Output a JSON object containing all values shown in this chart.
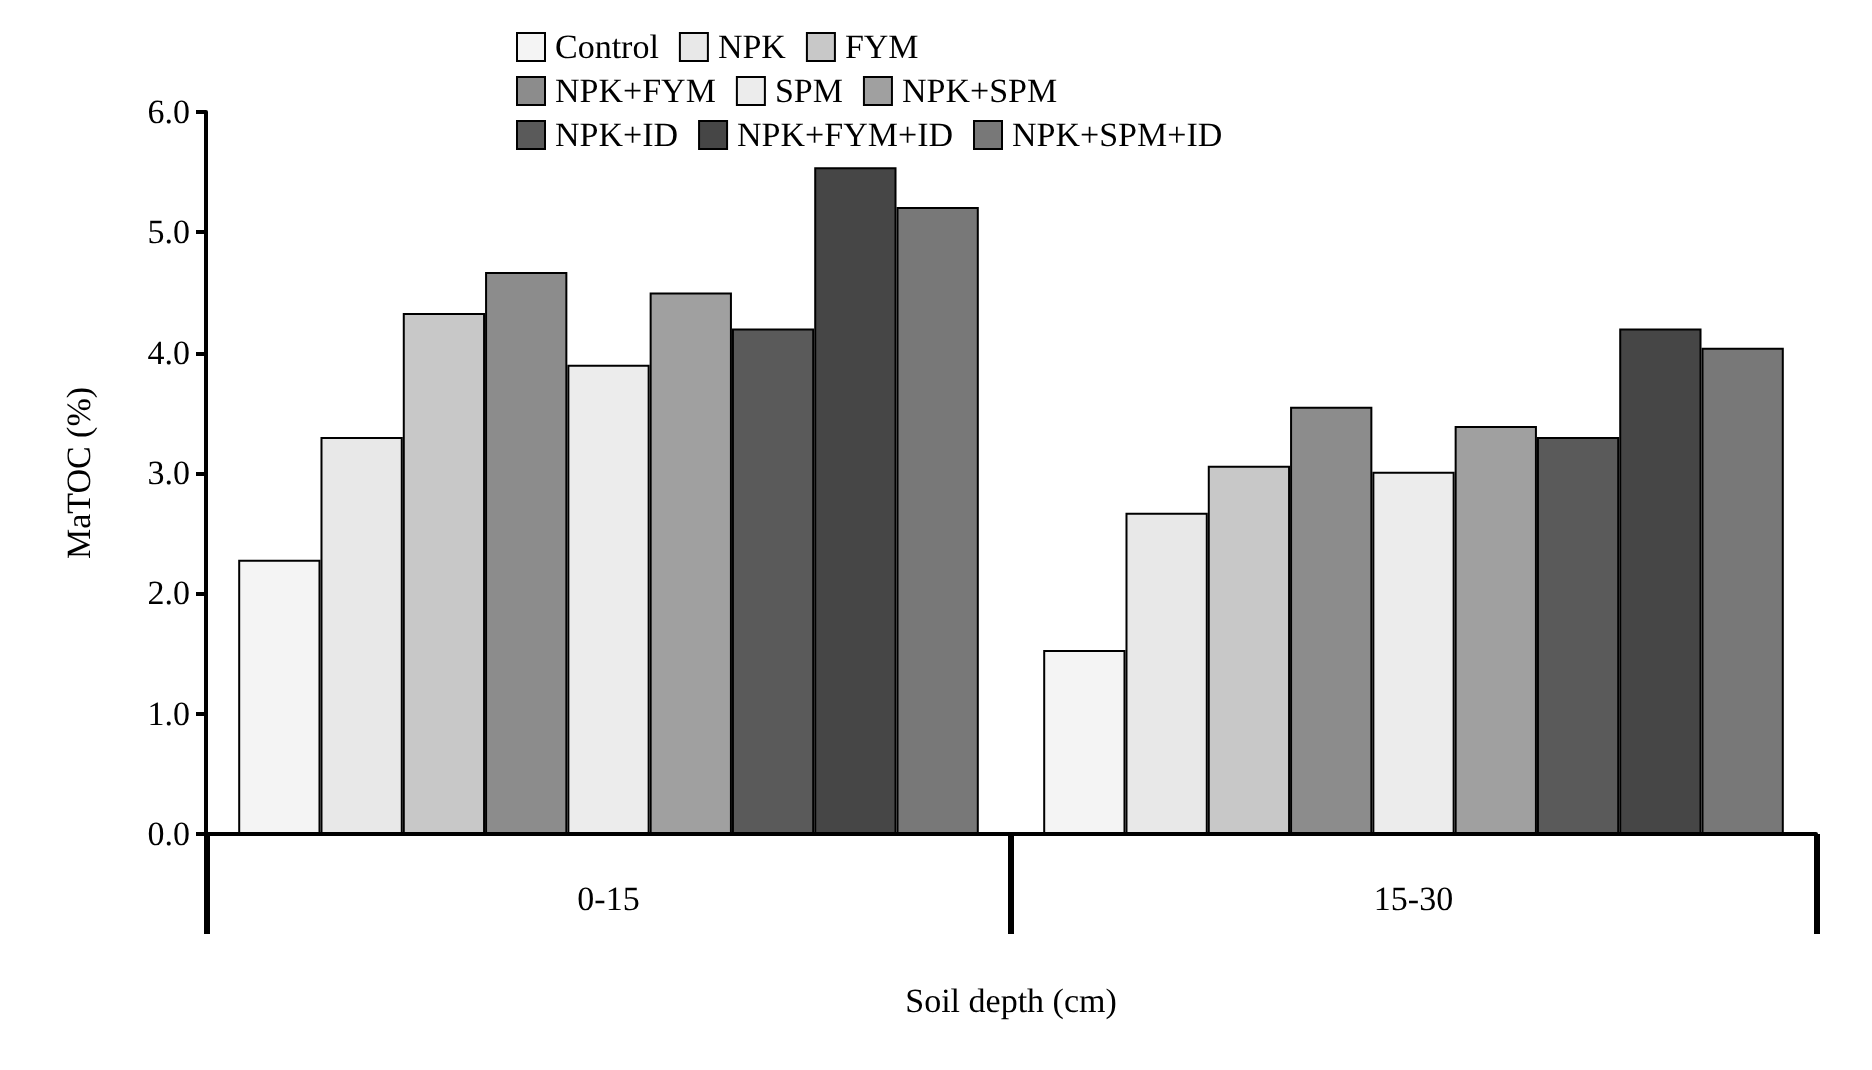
{
  "chart_data": {
    "type": "bar",
    "xlabel": "Soil depth (cm)",
    "ylabel": "MaTOC (%)",
    "categories": [
      "0-15",
      "15-30"
    ],
    "series": [
      {
        "name": "Control",
        "color": "#f4f4f4",
        "values": [
          2.28,
          1.53
        ]
      },
      {
        "name": "NPK",
        "color": "#e8e8e8",
        "values": [
          3.3,
          2.67
        ]
      },
      {
        "name": "FYM",
        "color": "#c8c8c8",
        "values": [
          4.33,
          3.06
        ]
      },
      {
        "name": "NPK+FYM",
        "color": "#8c8c8c",
        "values": [
          4.67,
          3.55
        ]
      },
      {
        "name": "SPM",
        "color": "#ececec",
        "values": [
          3.9,
          3.01
        ]
      },
      {
        "name": "NPK+SPM",
        "color": "#a0a0a0",
        "values": [
          4.5,
          3.39
        ]
      },
      {
        "name": "NPK+ID",
        "color": "#5a5a5a",
        "values": [
          4.2,
          3.3
        ]
      },
      {
        "name": "NPK+FYM+ID",
        "color": "#464646",
        "values": [
          5.54,
          4.2
        ]
      },
      {
        "name": "NPK+SPM+ID",
        "color": "#787878",
        "values": [
          5.21,
          4.04
        ]
      }
    ],
    "ylim": [
      0,
      6
    ],
    "yticks": [
      {
        "value": 0,
        "label": "0.0"
      },
      {
        "value": 1,
        "label": "1.0"
      },
      {
        "value": 2,
        "label": "2.0"
      },
      {
        "value": 3,
        "label": "3.0"
      },
      {
        "value": 4,
        "label": "4.0"
      },
      {
        "value": 5,
        "label": "5.0"
      },
      {
        "value": 6,
        "label": "6.0"
      }
    ],
    "grid": false,
    "legend": "top"
  }
}
